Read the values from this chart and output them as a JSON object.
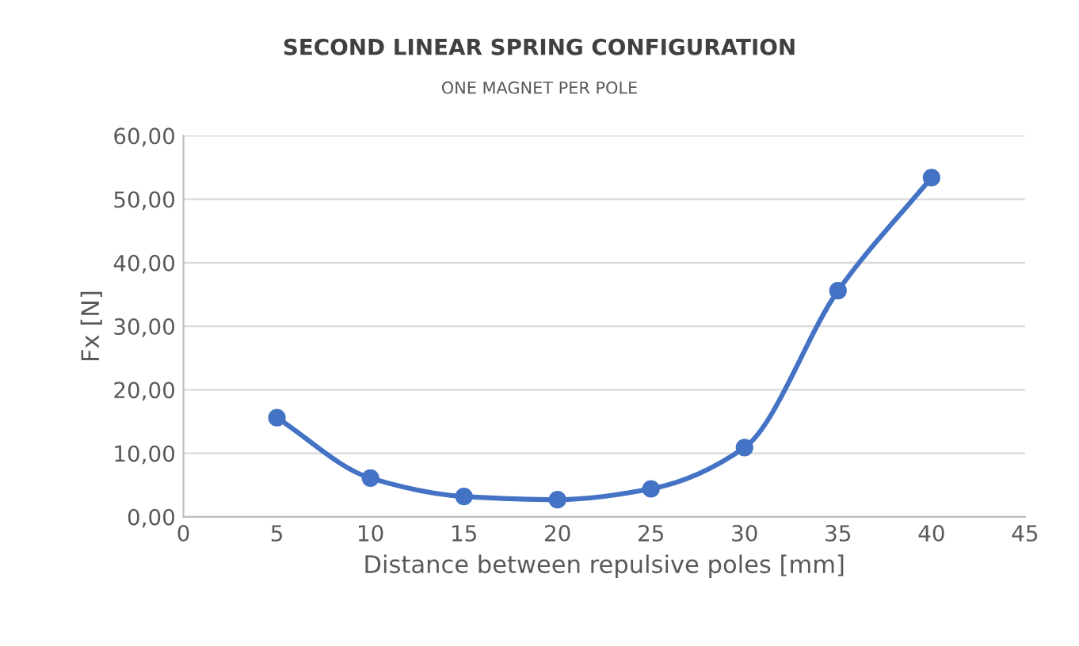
{
  "chart_data": {
    "type": "line",
    "title": "SECOND LINEAR SPRING CONFIGURATION",
    "subtitle": "ONE MAGNET PER POLE",
    "xlabel": "Distance between repulsive poles [mm]",
    "ylabel": "Fx [N]",
    "x": [
      5,
      10,
      15,
      20,
      25,
      30,
      35,
      40
    ],
    "series": [
      {
        "color": "#4472c4",
        "values": [
          15.6,
          6.1,
          3.2,
          2.7,
          4.4,
          10.9,
          35.6,
          53.4
        ]
      }
    ],
    "xlim": [
      0,
      45
    ],
    "xticks": [
      0,
      5,
      10,
      15,
      20,
      25,
      30,
      35,
      40,
      45
    ],
    "ylim": [
      0,
      60
    ],
    "yticks": [
      {
        "value": 0,
        "label": "0,00"
      },
      {
        "value": 10,
        "label": "10,00"
      },
      {
        "value": 20,
        "label": "20,00"
      },
      {
        "value": 30,
        "label": "30,00"
      },
      {
        "value": 40,
        "label": "40,00"
      },
      {
        "value": 50,
        "label": "50,00"
      },
      {
        "value": 60,
        "label": "60,00"
      }
    ],
    "grid": "y",
    "marker": "circle",
    "line_style": "solid",
    "legend": false
  }
}
